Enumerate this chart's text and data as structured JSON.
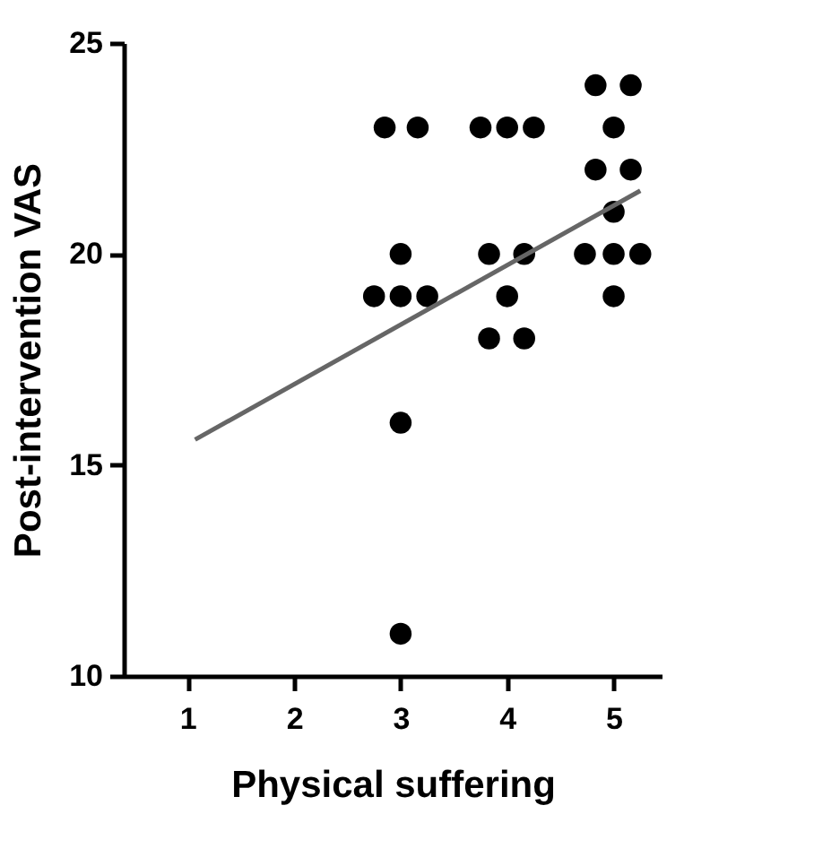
{
  "chart_data": {
    "type": "scatter",
    "xlabel": "Physical suffering",
    "ylabel": "Post-intervention VAS",
    "xlim": [
      0.4,
      5.45
    ],
    "xticks": [
      1,
      2,
      3,
      4,
      5
    ],
    "ylim": [
      10,
      25
    ],
    "yticks": [
      10,
      15,
      20,
      25
    ],
    "grid": false,
    "series": [
      {
        "color": "#000000",
        "marker": "circle",
        "x": [
          2.85,
          3.16,
          3.0,
          2.75,
          3.0,
          3.25,
          3.0,
          3.0,
          3.75,
          4.0,
          4.25,
          3.83,
          4.16,
          4.0,
          3.83,
          4.16,
          4.83,
          5.16,
          5.0,
          4.83,
          5.16,
          5.0,
          4.73,
          5.0,
          5.25,
          5.0
        ],
        "values": [
          23,
          23,
          20,
          19,
          19,
          19,
          16,
          11,
          23,
          23,
          23,
          20,
          20,
          19,
          18,
          18,
          24,
          24,
          23,
          22,
          22,
          21,
          20,
          20,
          20,
          19
        ]
      },
      {
        "type": "line",
        "color": "#666666",
        "marker": "none",
        "line_style": "solid",
        "x": [
          1.07,
          5.25
        ],
        "values": [
          15.6,
          21.5
        ]
      }
    ]
  }
}
